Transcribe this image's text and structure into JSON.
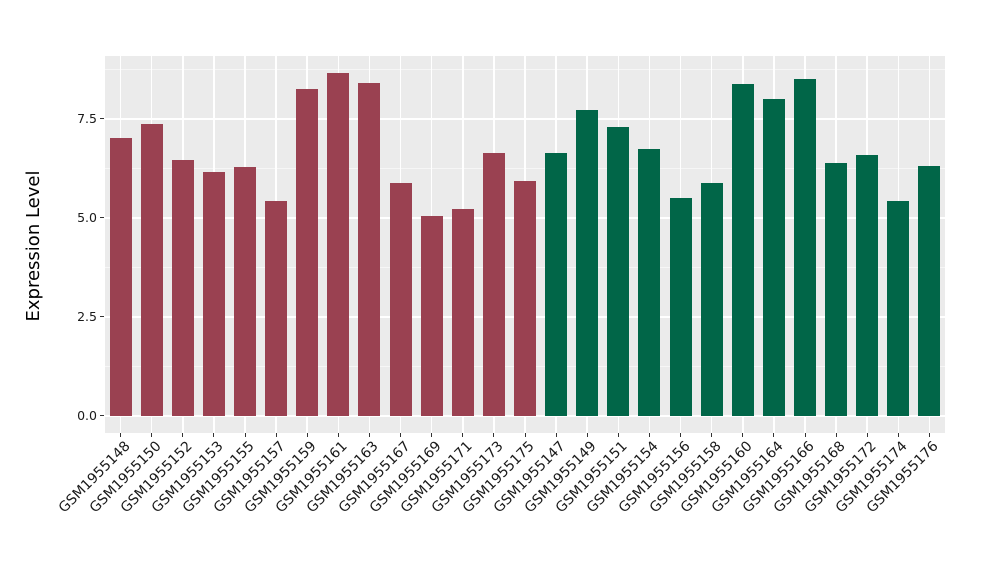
{
  "chart_data": {
    "type": "bar",
    "title": "",
    "xlabel": "",
    "ylabel": "Expression Level",
    "ylim": [
      -0.43,
      9.09
    ],
    "yticks": [
      0.0,
      2.5,
      5.0,
      7.5
    ],
    "ytick_labels": [
      "0.0",
      "2.5",
      "5.0",
      "7.5"
    ],
    "y_minor_gridlines": [
      1.25,
      3.75,
      6.25,
      8.75
    ],
    "grid": true,
    "legend": "none",
    "panel_bg": "#EBEBEB",
    "grid_color": "#FFFFFF",
    "tick_color": "#333333",
    "text_color": "#1A1A1A",
    "groups": [
      {
        "name": "group-maroon",
        "color": "#9A4151"
      },
      {
        "name": "group-green",
        "color": "#016648"
      }
    ],
    "bars": [
      {
        "label": "GSM1955148",
        "value": 7.03,
        "group": 0
      },
      {
        "label": "GSM1955150",
        "value": 7.38,
        "group": 0
      },
      {
        "label": "GSM1955152",
        "value": 6.46,
        "group": 0
      },
      {
        "label": "GSM1955153",
        "value": 6.15,
        "group": 0
      },
      {
        "label": "GSM1955155",
        "value": 6.28,
        "group": 0
      },
      {
        "label": "GSM1955157",
        "value": 5.44,
        "group": 0
      },
      {
        "label": "GSM1955159",
        "value": 8.26,
        "group": 0
      },
      {
        "label": "GSM1955161",
        "value": 8.67,
        "group": 0
      },
      {
        "label": "GSM1955163",
        "value": 8.41,
        "group": 0
      },
      {
        "label": "GSM1955167",
        "value": 5.89,
        "group": 0
      },
      {
        "label": "GSM1955169",
        "value": 5.04,
        "group": 0
      },
      {
        "label": "GSM1955171",
        "value": 5.23,
        "group": 0
      },
      {
        "label": "GSM1955173",
        "value": 6.65,
        "group": 0
      },
      {
        "label": "GSM1955175",
        "value": 5.94,
        "group": 0
      },
      {
        "label": "GSM1955147",
        "value": 6.65,
        "group": 1
      },
      {
        "label": "GSM1955149",
        "value": 7.72,
        "group": 1
      },
      {
        "label": "GSM1955151",
        "value": 7.29,
        "group": 1
      },
      {
        "label": "GSM1955154",
        "value": 6.74,
        "group": 1
      },
      {
        "label": "GSM1955156",
        "value": 5.5,
        "group": 1
      },
      {
        "label": "GSM1955158",
        "value": 5.89,
        "group": 1
      },
      {
        "label": "GSM1955160",
        "value": 8.38,
        "group": 1
      },
      {
        "label": "GSM1955164",
        "value": 8.0,
        "group": 1
      },
      {
        "label": "GSM1955166",
        "value": 8.5,
        "group": 1
      },
      {
        "label": "GSM1955168",
        "value": 6.4,
        "group": 1
      },
      {
        "label": "GSM1955172",
        "value": 6.6,
        "group": 1
      },
      {
        "label": "GSM1955174",
        "value": 5.44,
        "group": 1
      },
      {
        "label": "GSM1955176",
        "value": 6.3,
        "group": 1
      }
    ]
  }
}
